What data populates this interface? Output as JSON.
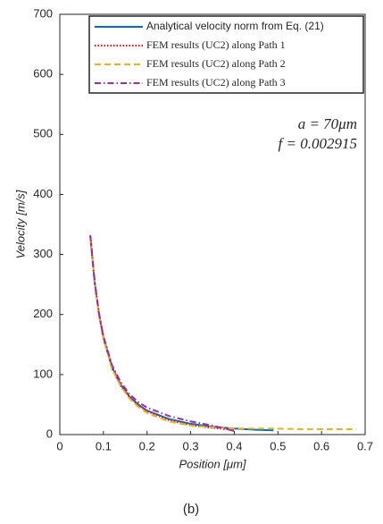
{
  "chart_data": {
    "type": "line",
    "xlabel": "Position [μm]",
    "ylabel": "Velocity [m/s]",
    "caption": "(b)",
    "annotations": [
      "a = 70μm",
      "f = 0.002915"
    ],
    "x": [
      0.07,
      0.08,
      0.09,
      0.1,
      0.12,
      0.14,
      0.16,
      0.18,
      0.2,
      0.25,
      0.3,
      0.35,
      0.4,
      0.45,
      0.49,
      0.55,
      0.6,
      0.68
    ],
    "series": [
      {
        "name": "Analytical velocity norm from Eq. (21)",
        "color": "#0072bd",
        "dash": "solid",
        "values": [
          330,
          253,
          200,
          162,
          112,
          83,
          63,
          50,
          40,
          26,
          18,
          13,
          10,
          8,
          7,
          null,
          null,
          null
        ]
      },
      {
        "name": "FEM results (UC2) along Path 1",
        "color": "#ff0000",
        "dash": "dotted",
        "values": [
          330,
          252,
          199,
          160,
          110,
          81,
          62,
          49,
          39,
          24,
          16,
          11,
          8,
          null,
          null,
          null,
          null,
          null
        ]
      },
      {
        "name": "FEM results (UC2) along Path 2",
        "color": "#edb120",
        "dash": "dashed",
        "values": [
          330,
          252,
          198,
          159,
          109,
          80,
          60,
          46,
          36,
          22,
          15,
          12,
          10,
          10,
          10,
          9,
          9,
          9
        ]
      },
      {
        "name": "FEM results (UC2) along Path 3",
        "color": "#a02da0",
        "dash": "dashdot",
        "values": [
          332,
          255,
          202,
          164,
          115,
          87,
          67,
          54,
          45,
          31,
          22,
          15,
          6,
          null,
          null,
          null,
          null,
          null
        ]
      }
    ],
    "xlim": [
      0,
      0.7
    ],
    "xticks": [
      0,
      0.1,
      0.2,
      0.3,
      0.4,
      0.5,
      0.6,
      0.7
    ],
    "ylim": [
      0,
      700
    ],
    "yticks": [
      0,
      100,
      200,
      300,
      400,
      500,
      600,
      700
    ],
    "grid": false
  }
}
